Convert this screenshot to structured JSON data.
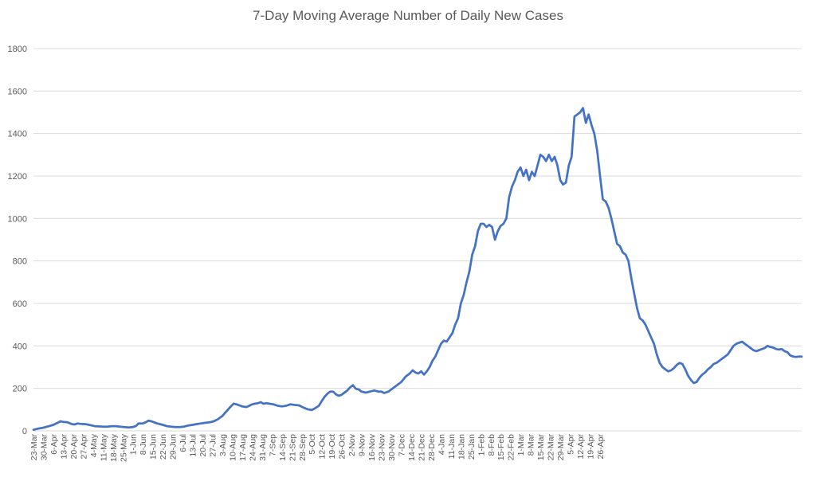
{
  "chart_data": {
    "type": "line",
    "title": "7-Day Moving Average Number of Daily New Cases",
    "xlabel": "",
    "ylabel": "",
    "ylim": [
      0,
      1800
    ],
    "y_ticks": [
      0,
      200,
      400,
      600,
      800,
      1000,
      1200,
      1400,
      1600,
      1800
    ],
    "x_tick_labels": [
      "23-Mar",
      "30-Mar",
      "6-Apr",
      "13-Apr",
      "20-Apr",
      "27-Apr",
      "4-May",
      "11-May",
      "18-May",
      "25-May",
      "1-Jun",
      "8-Jun",
      "15-Jun",
      "22-Jun",
      "29-Jun",
      "6-Jul",
      "13-Jul",
      "20-Jul",
      "27-Jul",
      "3-Aug",
      "10-Aug",
      "17-Aug",
      "24-Aug",
      "31-Aug",
      "7-Sep",
      "14-Sep",
      "21-Sep",
      "28-Sep",
      "5-Oct",
      "12-Oct",
      "19-Oct",
      "26-Oct",
      "2-Nov",
      "9-Nov",
      "16-Nov",
      "23-Nov",
      "30-Nov",
      "7-Dec",
      "14-Dec",
      "21-Dec",
      "28-Dec",
      "4-Jan",
      "11-Jan",
      "18-Jan",
      "25-Jan",
      "1-Feb",
      "8-Feb",
      "15-Feb",
      "22-Feb",
      "1-Mar",
      "8-Mar",
      "15-Mar",
      "22-Mar",
      "29-Mar",
      "5-Apr",
      "12-Apr",
      "19-Apr",
      "26-Apr"
    ],
    "grid": true,
    "line_color": "#4472C4",
    "series": [
      {
        "name": "",
        "points": [
          [
            0,
            5
          ],
          [
            3,
            10
          ],
          [
            7,
            15
          ],
          [
            11,
            22
          ],
          [
            14,
            28
          ],
          [
            17,
            38
          ],
          [
            19,
            45
          ],
          [
            21,
            42
          ],
          [
            24,
            40
          ],
          [
            27,
            32
          ],
          [
            29,
            30
          ],
          [
            31,
            35
          ],
          [
            33,
            33
          ],
          [
            36,
            32
          ],
          [
            38,
            30
          ],
          [
            40,
            27
          ],
          [
            43,
            22
          ],
          [
            46,
            21
          ],
          [
            49,
            20
          ],
          [
            52,
            20
          ],
          [
            55,
            22
          ],
          [
            58,
            22
          ],
          [
            61,
            20
          ],
          [
            64,
            18
          ],
          [
            67,
            16
          ],
          [
            70,
            18
          ],
          [
            72,
            22
          ],
          [
            74,
            35
          ],
          [
            77,
            35
          ],
          [
            79,
            40
          ],
          [
            81,
            48
          ],
          [
            83,
            45
          ],
          [
            85,
            40
          ],
          [
            87,
            35
          ],
          [
            89,
            32
          ],
          [
            91,
            28
          ],
          [
            94,
            22
          ],
          [
            97,
            20
          ],
          [
            100,
            18
          ],
          [
            103,
            18
          ],
          [
            106,
            20
          ],
          [
            109,
            25
          ],
          [
            112,
            28
          ],
          [
            115,
            32
          ],
          [
            118,
            35
          ],
          [
            121,
            38
          ],
          [
            124,
            40
          ],
          [
            127,
            45
          ],
          [
            130,
            55
          ],
          [
            133,
            70
          ],
          [
            135,
            85
          ],
          [
            137,
            100
          ],
          [
            139,
            115
          ],
          [
            141,
            128
          ],
          [
            143,
            125
          ],
          [
            145,
            120
          ],
          [
            147,
            115
          ],
          [
            150,
            112
          ],
          [
            152,
            118
          ],
          [
            154,
            125
          ],
          [
            156,
            128
          ],
          [
            158,
            130
          ],
          [
            160,
            135
          ],
          [
            162,
            128
          ],
          [
            164,
            130
          ],
          [
            166,
            128
          ],
          [
            169,
            125
          ],
          [
            172,
            118
          ],
          [
            175,
            115
          ],
          [
            178,
            118
          ],
          [
            181,
            125
          ],
          [
            184,
            122
          ],
          [
            187,
            120
          ],
          [
            190,
            110
          ],
          [
            193,
            102
          ],
          [
            196,
            98
          ],
          [
            198,
            105
          ],
          [
            201,
            118
          ],
          [
            203,
            140
          ],
          [
            205,
            160
          ],
          [
            207,
            175
          ],
          [
            209,
            185
          ],
          [
            211,
            185
          ],
          [
            213,
            172
          ],
          [
            215,
            165
          ],
          [
            217,
            170
          ],
          [
            219,
            180
          ],
          [
            221,
            190
          ],
          [
            223,
            205
          ],
          [
            225,
            215
          ],
          [
            227,
            198
          ],
          [
            229,
            195
          ],
          [
            231,
            185
          ],
          [
            234,
            180
          ],
          [
            237,
            185
          ],
          [
            240,
            190
          ],
          [
            243,
            185
          ],
          [
            245,
            185
          ],
          [
            247,
            178
          ],
          [
            250,
            185
          ],
          [
            253,
            200
          ],
          [
            256,
            215
          ],
          [
            259,
            230
          ],
          [
            262,
            255
          ],
          [
            265,
            270
          ],
          [
            267,
            285
          ],
          [
            269,
            275
          ],
          [
            271,
            270
          ],
          [
            273,
            280
          ],
          [
            275,
            265
          ],
          [
            277,
            280
          ],
          [
            279,
            300
          ],
          [
            281,
            330
          ],
          [
            283,
            350
          ],
          [
            285,
            380
          ],
          [
            287,
            410
          ],
          [
            289,
            425
          ],
          [
            291,
            420
          ],
          [
            293,
            440
          ],
          [
            295,
            460
          ],
          [
            297,
            500
          ],
          [
            299,
            530
          ],
          [
            301,
            600
          ],
          [
            303,
            640
          ],
          [
            305,
            700
          ],
          [
            307,
            750
          ],
          [
            309,
            830
          ],
          [
            311,
            870
          ],
          [
            313,
            940
          ],
          [
            315,
            975
          ],
          [
            317,
            975
          ],
          [
            319,
            960
          ],
          [
            321,
            970
          ],
          [
            323,
            960
          ],
          [
            325,
            900
          ],
          [
            327,
            940
          ],
          [
            329,
            965
          ],
          [
            331,
            975
          ],
          [
            333,
            1000
          ],
          [
            335,
            1100
          ],
          [
            337,
            1150
          ],
          [
            339,
            1180
          ],
          [
            341,
            1220
          ],
          [
            343,
            1240
          ],
          [
            345,
            1200
          ],
          [
            347,
            1230
          ],
          [
            349,
            1180
          ],
          [
            351,
            1220
          ],
          [
            353,
            1200
          ],
          [
            355,
            1250
          ],
          [
            357,
            1300
          ],
          [
            359,
            1290
          ],
          [
            361,
            1270
          ],
          [
            363,
            1300
          ],
          [
            365,
            1270
          ],
          [
            367,
            1290
          ],
          [
            369,
            1250
          ],
          [
            371,
            1180
          ],
          [
            373,
            1160
          ],
          [
            375,
            1170
          ],
          [
            377,
            1250
          ],
          [
            379,
            1290
          ],
          [
            381,
            1480
          ],
          [
            383,
            1490
          ],
          [
            385,
            1500
          ],
          [
            387,
            1520
          ],
          [
            389,
            1450
          ],
          [
            391,
            1490
          ],
          [
            393,
            1440
          ],
          [
            395,
            1400
          ],
          [
            397,
            1320
          ],
          [
            399,
            1200
          ],
          [
            401,
            1090
          ],
          [
            403,
            1080
          ],
          [
            405,
            1050
          ],
          [
            407,
            1000
          ],
          [
            409,
            940
          ],
          [
            411,
            880
          ],
          [
            413,
            870
          ],
          [
            415,
            840
          ],
          [
            417,
            830
          ],
          [
            419,
            800
          ],
          [
            421,
            720
          ],
          [
            423,
            650
          ],
          [
            425,
            580
          ],
          [
            427,
            530
          ],
          [
            429,
            520
          ],
          [
            431,
            500
          ],
          [
            433,
            470
          ],
          [
            435,
            440
          ],
          [
            437,
            410
          ],
          [
            439,
            360
          ],
          [
            441,
            320
          ],
          [
            443,
            300
          ],
          [
            445,
            290
          ],
          [
            447,
            280
          ],
          [
            449,
            285
          ],
          [
            451,
            295
          ],
          [
            453,
            310
          ],
          [
            455,
            320
          ],
          [
            457,
            315
          ],
          [
            459,
            290
          ],
          [
            461,
            260
          ],
          [
            463,
            240
          ],
          [
            465,
            225
          ],
          [
            467,
            230
          ],
          [
            469,
            250
          ],
          [
            471,
            265
          ],
          [
            473,
            275
          ],
          [
            475,
            290
          ],
          [
            477,
            300
          ],
          [
            479,
            315
          ],
          [
            481,
            320
          ],
          [
            483,
            330
          ],
          [
            485,
            340
          ],
          [
            487,
            350
          ],
          [
            489,
            360
          ],
          [
            491,
            380
          ],
          [
            493,
            400
          ],
          [
            495,
            410
          ],
          [
            497,
            415
          ],
          [
            499,
            420
          ],
          [
            501,
            410
          ],
          [
            503,
            400
          ],
          [
            505,
            390
          ],
          [
            507,
            380
          ],
          [
            509,
            375
          ],
          [
            511,
            380
          ],
          [
            513,
            385
          ],
          [
            515,
            390
          ],
          [
            517,
            400
          ],
          [
            519,
            395
          ],
          [
            521,
            392
          ],
          [
            523,
            385
          ],
          [
            525,
            383
          ],
          [
            527,
            385
          ],
          [
            529,
            375
          ],
          [
            531,
            370
          ],
          [
            533,
            355
          ],
          [
            535,
            350
          ],
          [
            537,
            348
          ],
          [
            539,
            350
          ],
          [
            541,
            350
          ]
        ]
      }
    ]
  }
}
